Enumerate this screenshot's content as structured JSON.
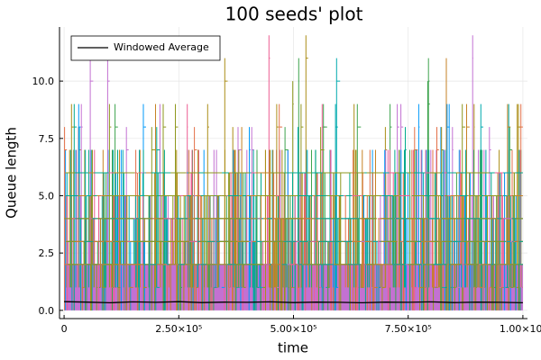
{
  "chart_data": {
    "type": "line",
    "title": "100 seeds' plot",
    "xlabel": "time",
    "ylabel": "Queue length",
    "xlim": [
      -10000,
      1010000
    ],
    "ylim": [
      -0.36,
      12.36
    ],
    "grid": true,
    "legend_position": "top-left",
    "x_ticks": [
      0,
      250000,
      500000,
      750000,
      1000000
    ],
    "x_tick_labels": [
      "0",
      "2.50×10⁵",
      "5.00×10⁵",
      "7.50×10⁵",
      "1.00×10⁶"
    ],
    "y_ticks": [
      0,
      2.5,
      5,
      7.5,
      10
    ],
    "y_tick_labels": [
      "0.0",
      "2.5",
      "5.0",
      "7.5",
      "10.0"
    ],
    "seed_count": 100,
    "seed_colors": [
      "#009AFA",
      "#E36F47",
      "#3EA44E",
      "#C371D2",
      "#AC8E18",
      "#00AAAE",
      "#ED5E93",
      "#C68225",
      "#00A98D",
      "#8E971E"
    ],
    "seed_series_summary": {
      "min": 0,
      "max": 12,
      "typical_band": [
        0,
        2
      ],
      "common_upper_band": [
        2,
        6
      ],
      "rare_peaks_up_to": 12
    },
    "series": [
      {
        "name": "Windowed Average",
        "color": "#000000",
        "x": [
          0,
          50000,
          100000,
          150000,
          200000,
          250000,
          300000,
          350000,
          400000,
          450000,
          500000,
          550000,
          600000,
          650000,
          700000,
          750000,
          800000,
          850000,
          900000,
          950000,
          1000000
        ],
        "values": [
          0.38,
          0.36,
          0.33,
          0.37,
          0.35,
          0.38,
          0.34,
          0.36,
          0.35,
          0.37,
          0.34,
          0.36,
          0.35,
          0.33,
          0.36,
          0.35,
          0.37,
          0.34,
          0.36,
          0.35,
          0.33
        ]
      }
    ]
  }
}
